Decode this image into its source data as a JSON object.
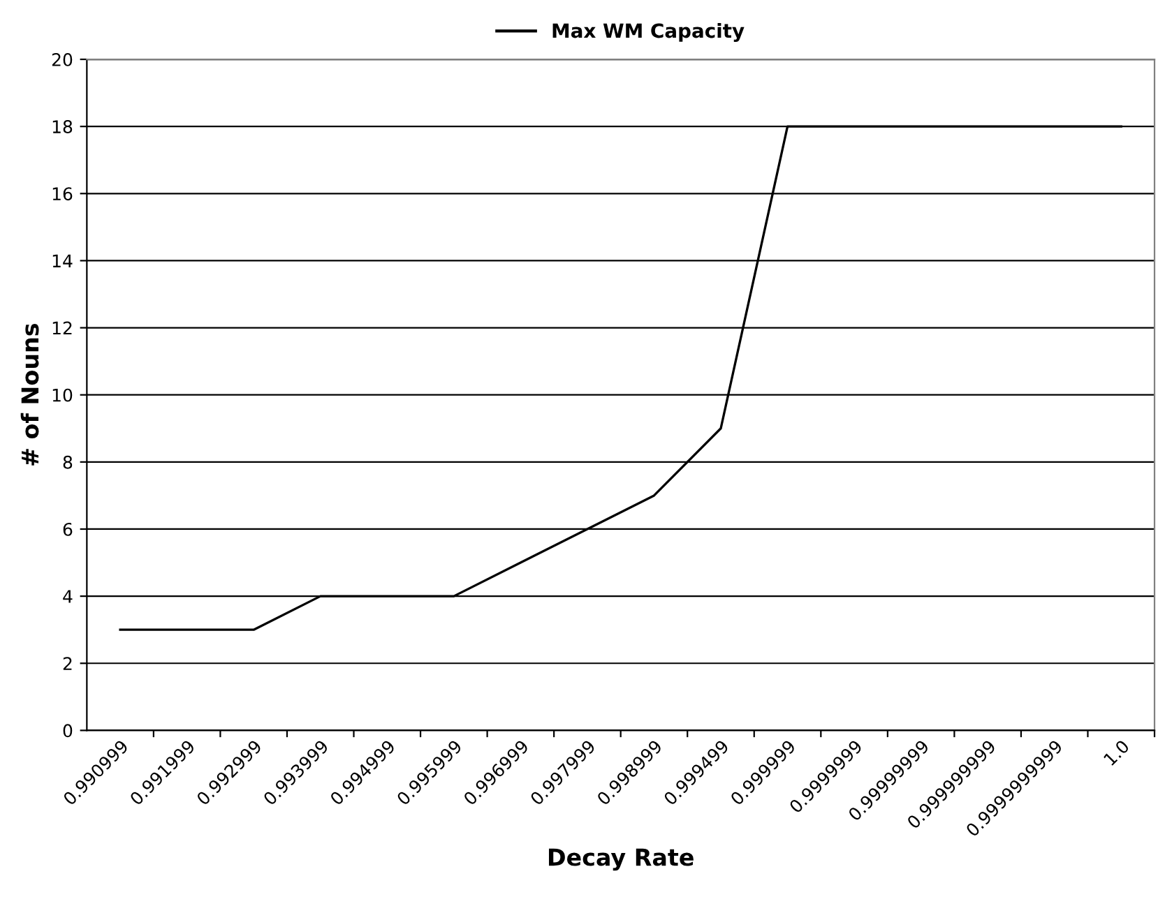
{
  "chart_data": {
    "type": "line",
    "xlabel": "Decay Rate",
    "ylabel": "# of Nouns",
    "categories": [
      "0.990999",
      "0.991999",
      "0.992999",
      "0.993999",
      "0.994999",
      "0.995999",
      "0.996999",
      "0.997999",
      "0.998999",
      "0.999499",
      "0.999999",
      "0.9999999",
      "0.99999999",
      "0.999999999",
      "0.9999999999",
      "1.0"
    ],
    "series": [
      {
        "name": "Max WM Capacity",
        "color": "#000000",
        "values": [
          3,
          3,
          3,
          4,
          4,
          4,
          5,
          6,
          7,
          9,
          18,
          18,
          18,
          18,
          18,
          18
        ]
      }
    ],
    "ylim": [
      0,
      20
    ],
    "yticks": [
      0,
      2,
      4,
      6,
      8,
      10,
      12,
      14,
      16,
      18,
      20
    ],
    "grid": "y",
    "legend": "top",
    "marker": "none",
    "line_style": "solid"
  }
}
